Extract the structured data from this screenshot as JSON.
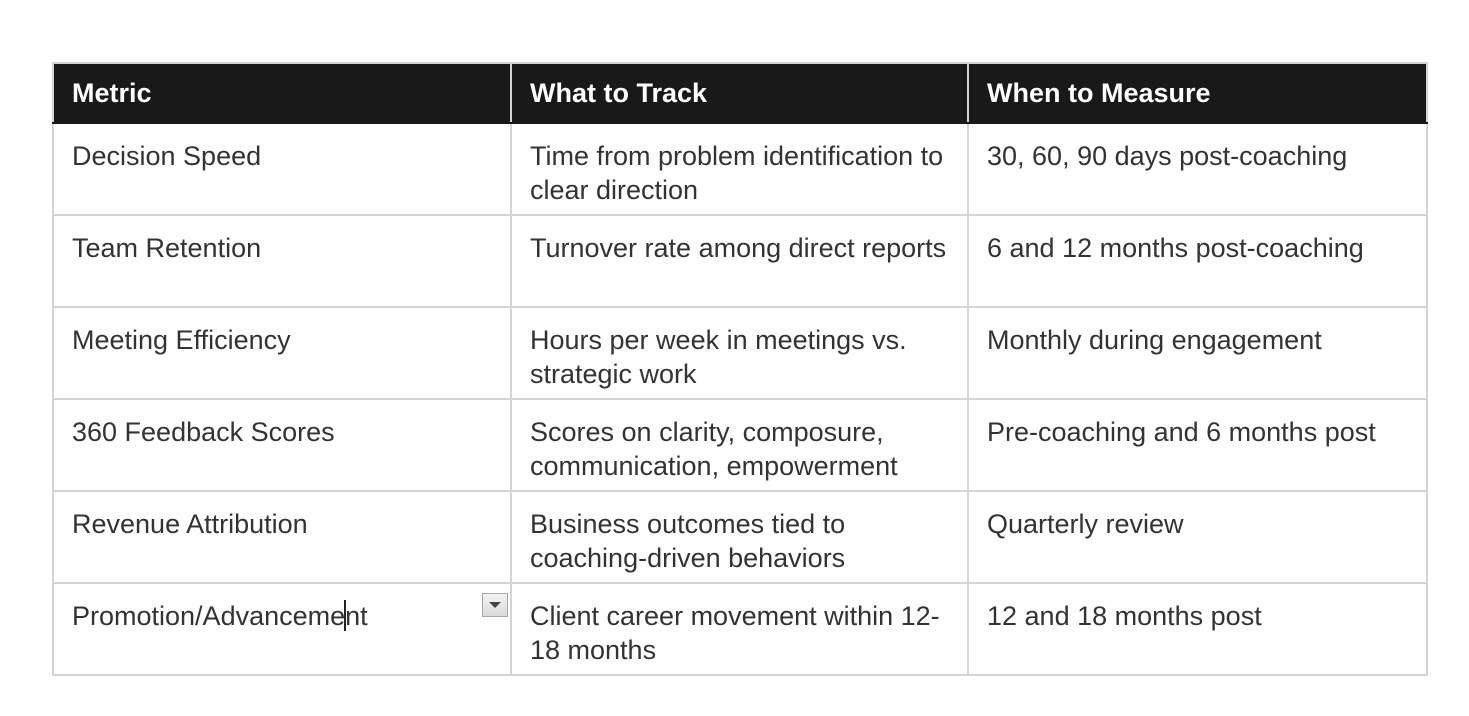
{
  "table": {
    "headers": [
      "Metric",
      "What to Track",
      "When to Measure"
    ],
    "rows": [
      [
        "Decision Speed",
        "Time from problem identification to clear direction",
        "30, 60, 90 days post-coaching"
      ],
      [
        "Team Retention",
        "Turnover rate among direct reports",
        "6 and 12 months post-coaching"
      ],
      [
        "Meeting Efficiency",
        "Hours per week in meetings vs. strategic work",
        "Monthly during engagement"
      ],
      [
        "360 Feedback Scores",
        "Scores on clarity, composure, communication, empowerment",
        "Pre-coaching and 6 months post"
      ],
      [
        "Revenue Attribution",
        "Business outcomes tied to coaching-driven behaviors",
        "Quarterly review"
      ],
      [
        "Promotion/Advancement",
        "Client career movement within 12-18 months",
        "12 and 18 months post"
      ]
    ],
    "editing_cell": {
      "text_before_cursor": "Promotion/Advanceme",
      "text_after_cursor": "nt",
      "dropdown_icon": "chevron-down-icon"
    }
  },
  "colors": {
    "header_background": "#191919",
    "header_text": "#ffffff",
    "cell_text": "#333333",
    "border": "#d4d4d4"
  }
}
